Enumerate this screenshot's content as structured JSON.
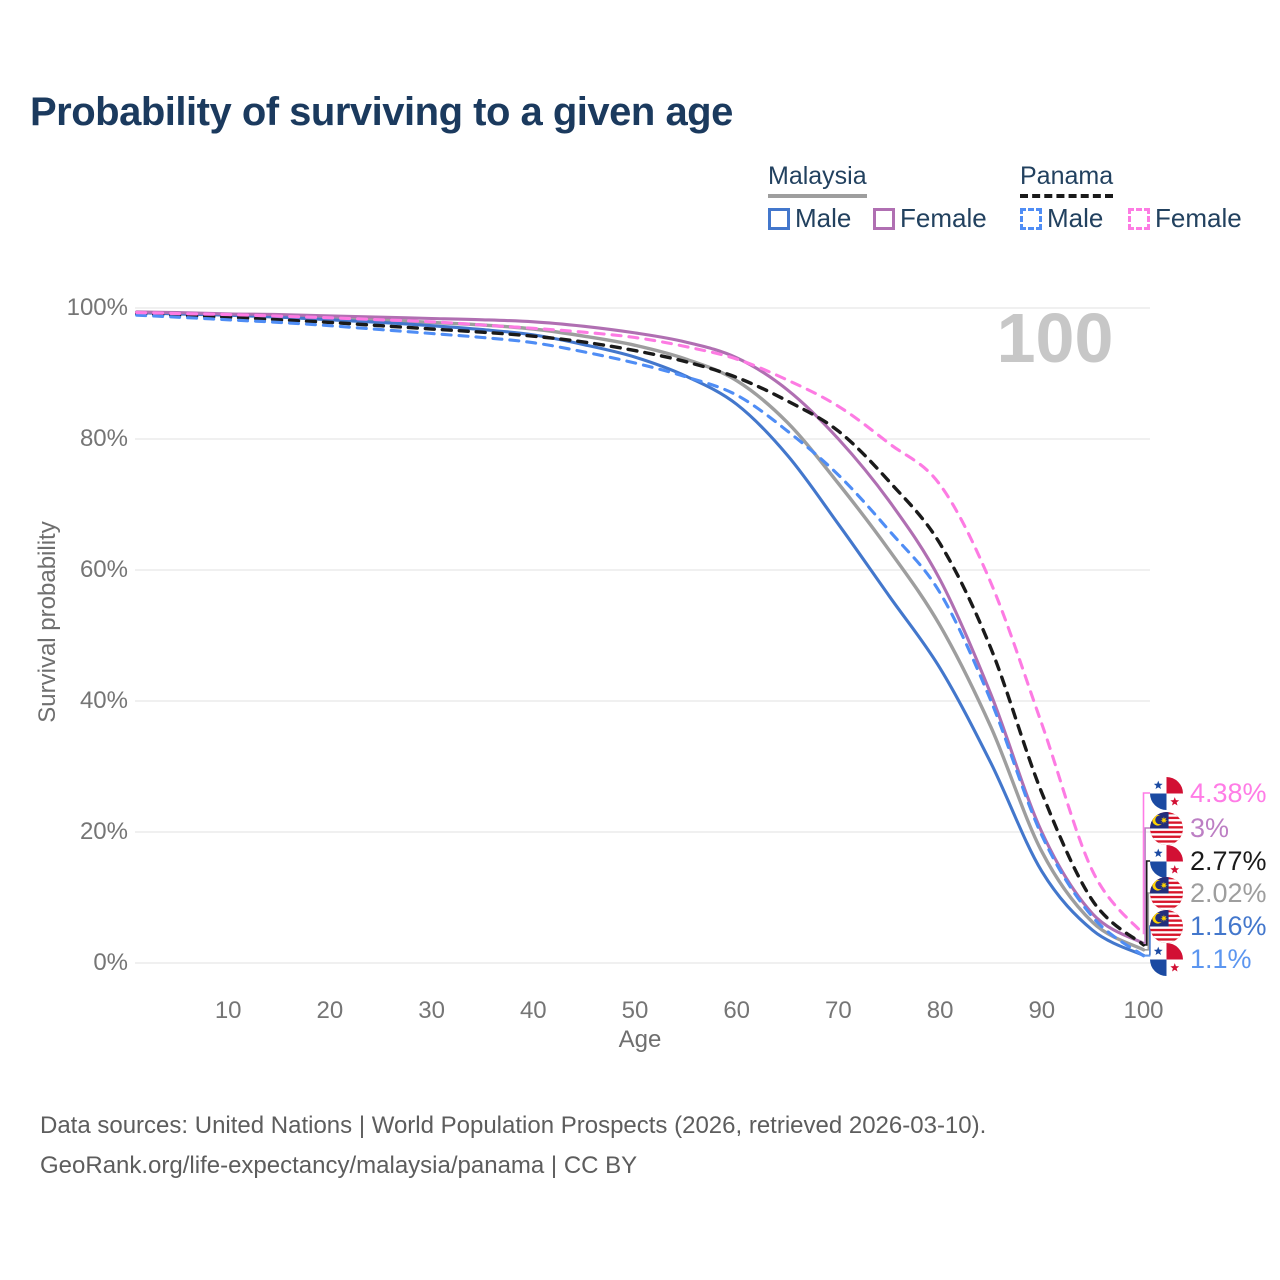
{
  "title": "Probability of surviving to a given age",
  "watermark_age": "100",
  "legend": {
    "groups": [
      {
        "label": "Malaysia",
        "style": "solid",
        "color": "#9e9e9e"
      },
      {
        "label": "Panama",
        "style": "dashed",
        "color": "#1a1a1a"
      }
    ],
    "items": [
      {
        "group": "Malaysia",
        "label": "Male",
        "style": "solid",
        "color": "#4377cc"
      },
      {
        "group": "Malaysia",
        "label": "Female",
        "style": "solid",
        "color": "#b06fb2"
      },
      {
        "group": "Panama",
        "label": "Male",
        "style": "dashed",
        "color": "#4f8df5"
      },
      {
        "group": "Panama",
        "label": "Female",
        "style": "dashed",
        "color": "#fd7be3"
      }
    ]
  },
  "chart_data": {
    "type": "line",
    "title": "Probability of surviving to a given age",
    "xlabel": "Age",
    "ylabel": "Survival probability",
    "xlim": [
      1,
      100
    ],
    "ylim": [
      0,
      100
    ],
    "grid": "horizontal",
    "legend_position": "top-right",
    "x_ticks": [
      10,
      20,
      30,
      40,
      50,
      60,
      70,
      80,
      90,
      100
    ],
    "y_ticks": [
      0,
      20,
      40,
      60,
      80,
      100
    ],
    "y_tick_labels": [
      "0%",
      "20%",
      "40%",
      "60%",
      "80%",
      "100%"
    ],
    "ages": [
      1,
      5,
      10,
      15,
      20,
      25,
      30,
      35,
      40,
      45,
      50,
      55,
      60,
      65,
      70,
      75,
      80,
      85,
      90,
      95,
      100
    ],
    "series": [
      {
        "name": "Malaysia Both sexes",
        "country": "Malaysia",
        "sex": "Both",
        "style": "solid",
        "color": "#9e9e9e",
        "values": [
          99.35,
          99.2,
          99.0,
          98.8,
          98.5,
          98.2,
          97.8,
          97.4,
          96.8,
          95.7,
          94.3,
          92.2,
          88.9,
          82.5,
          73.2,
          63.0,
          51.5,
          36.0,
          17.0,
          6.2,
          2.02
        ]
      },
      {
        "name": "Malaysia Male",
        "country": "Malaysia",
        "sex": "Male",
        "style": "solid",
        "color": "#4377cc",
        "values": [
          99.3,
          99.1,
          98.9,
          98.6,
          98.2,
          97.8,
          97.3,
          96.7,
          95.9,
          94.4,
          92.5,
          89.6,
          85.3,
          77.5,
          67.0,
          56.0,
          45.0,
          30.5,
          14.0,
          5.0,
          1.16
        ]
      },
      {
        "name": "Malaysia Female",
        "country": "Malaysia",
        "sex": "Female",
        "style": "solid",
        "color": "#b06fb2",
        "values": [
          99.4,
          99.3,
          99.1,
          99.0,
          98.8,
          98.6,
          98.4,
          98.2,
          97.9,
          97.2,
          96.2,
          94.8,
          92.4,
          87.5,
          80.0,
          70.5,
          58.5,
          41.0,
          20.0,
          7.5,
          3.0
        ]
      },
      {
        "name": "Panama Both sexes",
        "country": "Panama",
        "sex": "Both",
        "style": "dashed",
        "color": "#1a1a1a",
        "values": [
          99.1,
          98.85,
          98.6,
          98.2,
          97.8,
          97.3,
          96.8,
          96.3,
          95.7,
          94.8,
          93.5,
          91.8,
          89.4,
          85.8,
          81.2,
          73.5,
          64.0,
          48.0,
          26.0,
          9.5,
          2.77
        ]
      },
      {
        "name": "Panama Male",
        "country": "Panama",
        "sex": "Male",
        "style": "dashed",
        "color": "#4f8df5",
        "values": [
          98.9,
          98.6,
          98.2,
          97.8,
          97.3,
          96.7,
          96.1,
          95.5,
          94.7,
          93.3,
          91.6,
          89.5,
          86.7,
          81.2,
          74.5,
          66.0,
          56.5,
          40.0,
          19.5,
          7.0,
          1.1
        ]
      },
      {
        "name": "Panama Female",
        "country": "Panama",
        "sex": "Female",
        "style": "dashed",
        "color": "#fd7be3",
        "values": [
          99.3,
          99.15,
          99.0,
          98.75,
          98.5,
          98.2,
          97.9,
          97.4,
          96.9,
          96.3,
          95.5,
          94.1,
          92.2,
          89.0,
          85.0,
          79.3,
          73.0,
          58.0,
          36.5,
          14.0,
          4.38
        ]
      }
    ]
  },
  "annotations": [
    {
      "series": "Panama Female",
      "flag": "panama",
      "value_text": "4.38%",
      "value": 4.38,
      "color": "#ff7ce6"
    },
    {
      "series": "Malaysia Female",
      "flag": "malaysia",
      "value_text": "3%",
      "value": 3.0,
      "color": "#bd7fc4"
    },
    {
      "series": "Panama Both sexes",
      "flag": "panama",
      "value_text": "2.77%",
      "value": 2.77,
      "color": "#1a1a1a"
    },
    {
      "series": "Malaysia Both sexes",
      "flag": "malaysia",
      "value_text": "2.02%",
      "value": 2.02,
      "color": "#9e9e9e"
    },
    {
      "series": "Malaysia Male",
      "flag": "malaysia",
      "value_text": "1.16%",
      "value": 1.16,
      "color": "#4377cc"
    },
    {
      "series": "Panama Male",
      "flag": "panama",
      "value_text": "1.1%",
      "value": 1.1,
      "color": "#5c96f0"
    }
  ],
  "footer": {
    "line1": "Data sources: United Nations | World Population Prospects (2026, retrieved 2026-03-10).",
    "line2": "GeoRank.org/life-expectancy/malaysia/panama | CC BY"
  }
}
